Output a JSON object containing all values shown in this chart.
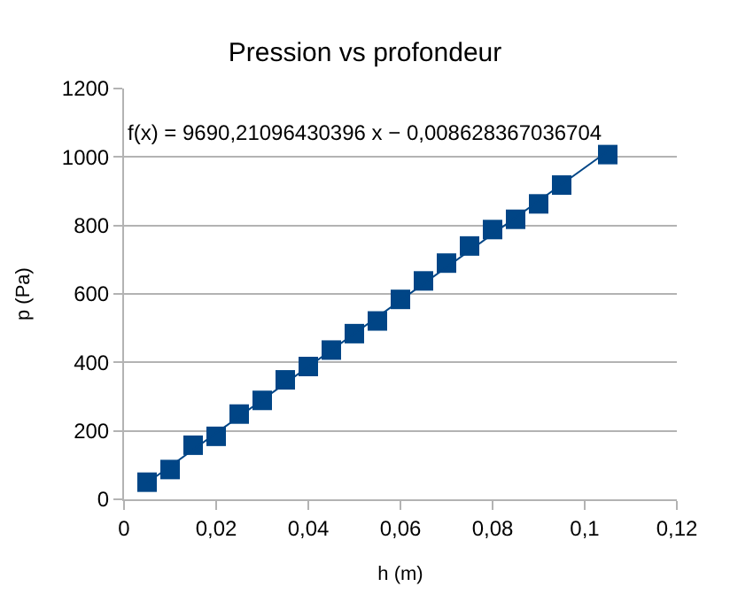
{
  "chart_data": {
    "type": "scatter",
    "title": "Pression vs profondeur",
    "xlabel": "h (m)",
    "ylabel": "p (Pa)",
    "annotations": [
      "f(x) = 9690,21096430396 x − 0,008628367036704"
    ],
    "series": [
      {
        "color": "#004586",
        "marker": "square",
        "x": [
          0.005,
          0.01,
          0.015,
          0.02,
          0.025,
          0.03,
          0.035,
          0.04,
          0.045,
          0.05,
          0.055,
          0.06,
          0.065,
          0.07,
          0.075,
          0.08,
          0.085,
          0.09,
          0.095,
          0.105
        ],
        "values": [
          50,
          87,
          158,
          184,
          249,
          289,
          349,
          388,
          436,
          484,
          521,
          584,
          638,
          690,
          740,
          788,
          818,
          863,
          918,
          1007
        ]
      },
      {
        "type": "line",
        "color": "#004586",
        "x": [
          0.005,
          0.105
        ],
        "values": [
          48,
          1017
        ]
      }
    ],
    "xlim": [
      0,
      0.12
    ],
    "xticks": [
      0,
      {
        "value": 0.02,
        "label": "0,02"
      },
      {
        "value": 0.04,
        "label": "0,04"
      },
      {
        "value": 0.06,
        "label": "0,06"
      },
      {
        "value": 0.08,
        "label": "0,08"
      },
      {
        "value": 0.1,
        "label": "0,1"
      },
      {
        "value": 0.12,
        "label": "0,12"
      }
    ],
    "ylim": [
      0,
      1200
    ],
    "yticks": [
      0,
      200,
      400,
      600,
      800,
      1000,
      1200
    ],
    "grid": "y"
  }
}
